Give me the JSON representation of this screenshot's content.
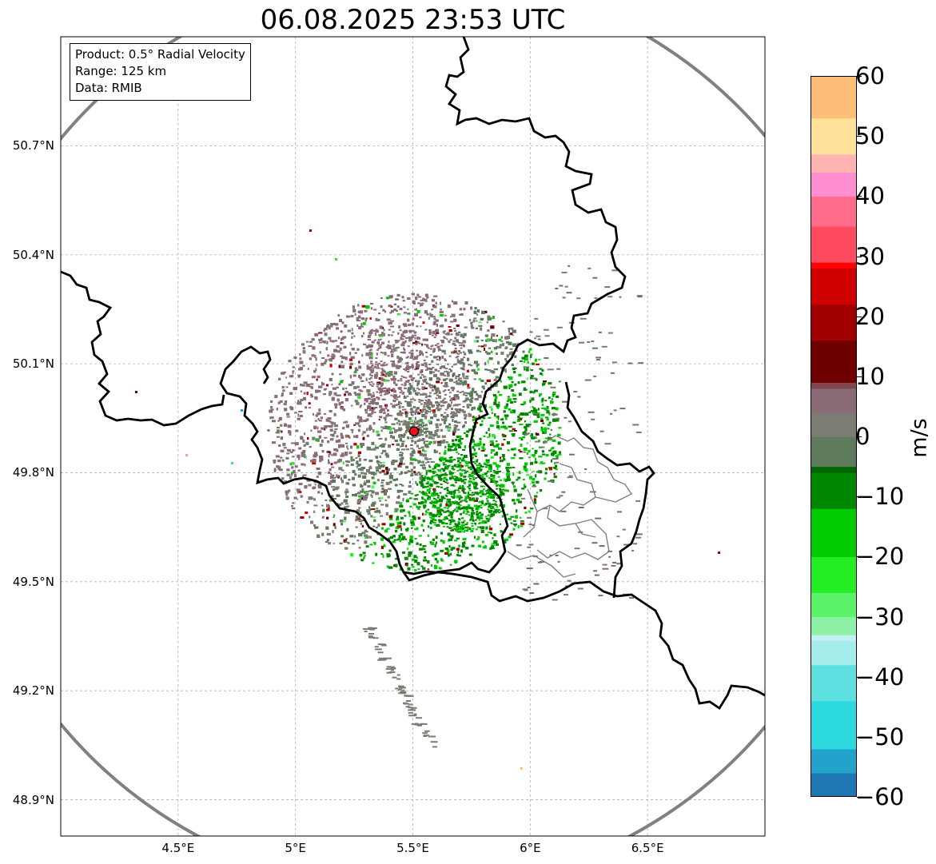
{
  "title": "06.08.2025 23:53 UTC",
  "info": {
    "product": "Product: 0.5° Radial Velocity",
    "range": "Range: 125 km",
    "source": "Data: RMIB"
  },
  "map": {
    "lon_range": [
      4.0,
      7.0
    ],
    "lat_range": [
      48.8,
      51.0
    ],
    "y_ticks": [
      "50.7°N",
      "50.4°N",
      "50.1°N",
      "49.8°N",
      "49.5°N",
      "49.2°N",
      "48.9°N"
    ],
    "y_tick_values": [
      50.7,
      50.4,
      50.1,
      49.8,
      49.5,
      49.2,
      48.9
    ],
    "x_ticks": [
      "4.5°E",
      "5°E",
      "5.5°E",
      "6°E",
      "6.5°E"
    ],
    "x_tick_values": [
      4.5,
      5.0,
      5.5,
      6.0,
      6.5
    ],
    "grid": true,
    "radar_site": {
      "lon": 5.505,
      "lat": 49.914
    },
    "range_ring_km": 125,
    "colors": {
      "range_ring": "#808080",
      "border": "#000000",
      "admin_border": "#808080",
      "radar_marker": "#e8141c"
    }
  },
  "colorbar": {
    "label": "m/s",
    "min": -60,
    "max": 60,
    "ticks": [
      "60",
      "50",
      "40",
      "30",
      "20",
      "10",
      "0",
      "−10",
      "−20",
      "−30",
      "−40",
      "−50",
      "−60"
    ],
    "tick_values": [
      60,
      50,
      40,
      30,
      20,
      10,
      0,
      -10,
      -20,
      -30,
      -40,
      -50,
      -60
    ],
    "stops": [
      {
        "v": -60,
        "c": "#1f77b4"
      },
      {
        "v": -56,
        "c": "#21a3cc"
      },
      {
        "v": -52,
        "c": "#2cd9de"
      },
      {
        "v": -44,
        "c": "#5ee0e0"
      },
      {
        "v": -38,
        "c": "#a5ecec"
      },
      {
        "v": -34,
        "c": "#c2f0f0"
      },
      {
        "v": -33,
        "c": "#8ff0a8"
      },
      {
        "v": -30,
        "c": "#5cf26a"
      },
      {
        "v": -26,
        "c": "#22ee22"
      },
      {
        "v": -20,
        "c": "#00cc00"
      },
      {
        "v": -12,
        "c": "#008800"
      },
      {
        "v": -6,
        "c": "#006400"
      },
      {
        "v": -5,
        "c": "#5d7a5b"
      },
      {
        "v": 0,
        "c": "#7c7c74"
      },
      {
        "v": 4,
        "c": "#8a6c78"
      },
      {
        "v": 8,
        "c": "#824650"
      },
      {
        "v": 9,
        "c": "#6e0000"
      },
      {
        "v": 16,
        "c": "#a00000"
      },
      {
        "v": 22,
        "c": "#d00000"
      },
      {
        "v": 28,
        "c": "#ff0000"
      },
      {
        "v": 29,
        "c": "#ff4a60"
      },
      {
        "v": 35,
        "c": "#ff6c8a"
      },
      {
        "v": 40,
        "c": "#ff8fd0"
      },
      {
        "v": 44,
        "c": "#ffb4b4"
      },
      {
        "v": 47,
        "c": "#ffe29a"
      },
      {
        "v": 53,
        "c": "#ffbe78"
      },
      {
        "v": 60,
        "c": "#ff9a55"
      }
    ]
  }
}
